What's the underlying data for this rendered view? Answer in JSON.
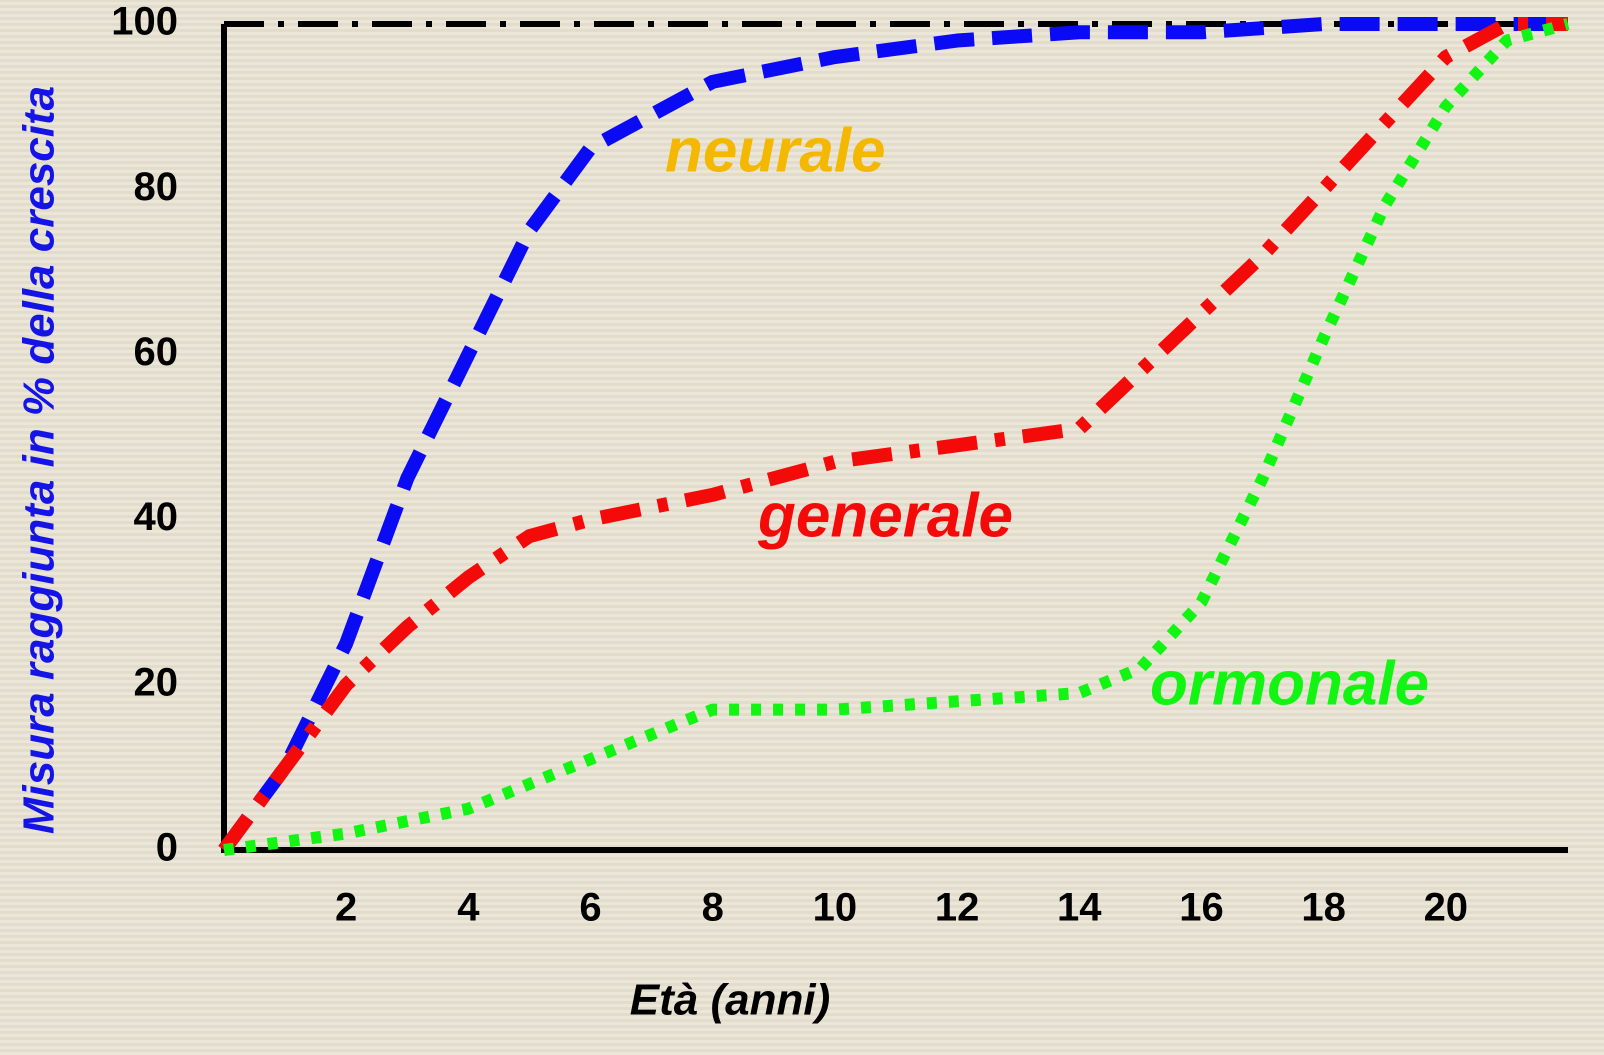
{
  "chart_data": {
    "type": "line",
    "y_label": "Misura raggiunta in % della crescita",
    "x_label": "Età  (anni)",
    "xlim": [
      0,
      22
    ],
    "xticks": [
      2,
      4,
      6,
      8,
      10,
      12,
      14,
      16,
      18,
      20
    ],
    "ylim": [
      0,
      100
    ],
    "yticks": [
      0,
      20,
      40,
      60,
      80,
      100
    ],
    "series": [
      {
        "name": "neurale",
        "color": "#0a0af5",
        "label_color": "#f5b800",
        "x": [
          0,
          1,
          2,
          3,
          4,
          5,
          6,
          8,
          10,
          12,
          14,
          16,
          18,
          20,
          22
        ],
        "values": [
          0,
          10,
          25,
          45,
          60,
          75,
          85,
          93,
          96,
          98,
          99,
          99,
          100,
          100,
          100
        ]
      },
      {
        "name": "generale",
        "color": "#f50a0a",
        "label_color": "#f50a0a",
        "x": [
          0,
          1,
          2,
          3,
          4,
          5,
          6,
          8,
          10,
          12,
          14,
          15,
          16,
          17,
          18,
          19,
          20,
          21,
          22
        ],
        "values": [
          0,
          10,
          20,
          27,
          33,
          38,
          40,
          43,
          47,
          49,
          51,
          58,
          65,
          72,
          80,
          88,
          96,
          100,
          100
        ]
      },
      {
        "name": "ormonale",
        "color": "#12f512",
        "label_color": "#12f512",
        "x": [
          0,
          2,
          4,
          6,
          7,
          8,
          10,
          12,
          14,
          15,
          16,
          17,
          18,
          19,
          20,
          21,
          22
        ],
        "values": [
          0,
          2,
          5,
          11,
          14,
          17,
          17,
          18,
          19,
          22,
          30,
          45,
          62,
          78,
          90,
          98,
          100
        ]
      }
    ]
  }
}
